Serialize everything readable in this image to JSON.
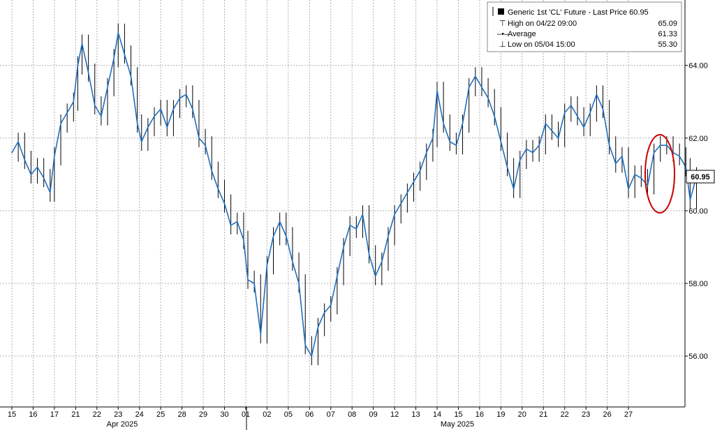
{
  "chart_data": {
    "type": "line",
    "series": [
      {
        "name": "Generic 1st 'CL' Future - Last Price",
        "last_value": 60.95,
        "color": "#1f6fc0",
        "points": [
          [
            0,
            61.6
          ],
          [
            0.3,
            61.9
          ],
          [
            0.6,
            61.4
          ],
          [
            0.9,
            61.0
          ],
          [
            1.2,
            61.2
          ],
          [
            1.5,
            60.9
          ],
          [
            1.8,
            60.5
          ],
          [
            2.0,
            61.5
          ],
          [
            2.3,
            62.4
          ],
          [
            2.6,
            62.7
          ],
          [
            2.9,
            63.0
          ],
          [
            3.1,
            64.0
          ],
          [
            3.3,
            64.6
          ],
          [
            3.6,
            63.8
          ],
          [
            3.9,
            62.9
          ],
          [
            4.2,
            62.6
          ],
          [
            4.5,
            63.4
          ],
          [
            4.8,
            64.2
          ],
          [
            5.0,
            64.9
          ],
          [
            5.3,
            64.3
          ],
          [
            5.6,
            63.7
          ],
          [
            5.9,
            62.4
          ],
          [
            6.1,
            61.9
          ],
          [
            6.4,
            62.3
          ],
          [
            6.7,
            62.6
          ],
          [
            7.0,
            62.8
          ],
          [
            7.3,
            62.3
          ],
          [
            7.6,
            62.8
          ],
          [
            7.9,
            63.1
          ],
          [
            8.2,
            63.2
          ],
          [
            8.5,
            62.8
          ],
          [
            8.8,
            62.0
          ],
          [
            9.1,
            61.8
          ],
          [
            9.4,
            61.1
          ],
          [
            9.7,
            60.6
          ],
          [
            10.0,
            60.2
          ],
          [
            10.3,
            59.6
          ],
          [
            10.6,
            59.7
          ],
          [
            10.9,
            59.2
          ],
          [
            11.1,
            58.1
          ],
          [
            11.4,
            58.0
          ],
          [
            11.7,
            56.6
          ],
          [
            12.0,
            58.5
          ],
          [
            12.3,
            59.3
          ],
          [
            12.6,
            59.7
          ],
          [
            12.9,
            59.3
          ],
          [
            13.2,
            58.6
          ],
          [
            13.5,
            58.0
          ],
          [
            13.8,
            56.3
          ],
          [
            14.1,
            56.0
          ],
          [
            14.4,
            56.8
          ],
          [
            14.7,
            57.2
          ],
          [
            15.0,
            57.4
          ],
          [
            15.3,
            58.2
          ],
          [
            15.6,
            59.0
          ],
          [
            15.9,
            59.6
          ],
          [
            16.2,
            59.5
          ],
          [
            16.5,
            59.9
          ],
          [
            16.8,
            58.8
          ],
          [
            17.1,
            58.2
          ],
          [
            17.4,
            58.6
          ],
          [
            17.7,
            59.3
          ],
          [
            18.0,
            59.9
          ],
          [
            18.3,
            60.2
          ],
          [
            18.6,
            60.5
          ],
          [
            18.9,
            60.8
          ],
          [
            19.2,
            61.1
          ],
          [
            19.5,
            61.6
          ],
          [
            19.8,
            62.0
          ],
          [
            20.0,
            63.3
          ],
          [
            20.3,
            62.4
          ],
          [
            20.6,
            61.9
          ],
          [
            20.9,
            61.8
          ],
          [
            21.2,
            62.4
          ],
          [
            21.5,
            63.4
          ],
          [
            21.8,
            63.7
          ],
          [
            22.1,
            63.4
          ],
          [
            22.4,
            63.1
          ],
          [
            22.7,
            62.6
          ],
          [
            23.0,
            61.9
          ],
          [
            23.3,
            61.2
          ],
          [
            23.6,
            60.6
          ],
          [
            23.9,
            61.4
          ],
          [
            24.2,
            61.7
          ],
          [
            24.5,
            61.6
          ],
          [
            24.8,
            61.8
          ],
          [
            25.1,
            62.4
          ],
          [
            25.4,
            62.2
          ],
          [
            25.7,
            62.0
          ],
          [
            26.0,
            62.7
          ],
          [
            26.3,
            62.9
          ],
          [
            26.6,
            62.6
          ],
          [
            26.9,
            62.3
          ],
          [
            27.2,
            62.7
          ],
          [
            27.5,
            63.2
          ],
          [
            27.8,
            62.8
          ],
          [
            28.1,
            61.8
          ],
          [
            28.4,
            61.3
          ],
          [
            28.7,
            61.5
          ],
          [
            29.0,
            60.6
          ],
          [
            29.3,
            61.0
          ],
          [
            29.6,
            60.9
          ],
          [
            29.9,
            60.7
          ],
          [
            30.2,
            61.6
          ],
          [
            30.5,
            61.8
          ],
          [
            30.8,
            61.8
          ],
          [
            31.1,
            61.6
          ],
          [
            31.4,
            61.5
          ],
          [
            31.7,
            61.2
          ],
          [
            31.9,
            60.3
          ],
          [
            32.2,
            60.95
          ]
        ]
      }
    ],
    "legend": {
      "title": "Generic 1st 'CL' Future - Last Price 60.95",
      "entries": [
        {
          "label": "High on 04/22 09:00",
          "value": "65.09"
        },
        {
          "label": "Average",
          "value": "61.33"
        },
        {
          "label": "Low on 05/04 15:00",
          "value": "55.30"
        }
      ],
      "placement": "top-right"
    },
    "y_ticks": [
      "64.00",
      "62.00",
      "60.00",
      "58.00",
      "56.00"
    ],
    "y_tick_values": [
      64,
      62,
      60,
      58,
      56
    ],
    "ylim": [
      54.6,
      65.8
    ],
    "x_ticks": [
      "15",
      "16",
      "17",
      "21",
      "22",
      "23",
      "24",
      "25",
      "28",
      "29",
      "30",
      "01",
      "02",
      "05",
      "06",
      "07",
      "08",
      "09",
      "12",
      "13",
      "14",
      "15",
      "16",
      "19",
      "20",
      "21",
      "22",
      "23",
      "26",
      "27"
    ],
    "months": [
      "Apr 2025",
      "May 2025"
    ],
    "last_price_label": "60.95",
    "grid": true,
    "colors": {
      "line": "#1f6fc0",
      "candle": "#000000",
      "grid": "#b0b0b0",
      "annotation": "#cc0000"
    }
  }
}
